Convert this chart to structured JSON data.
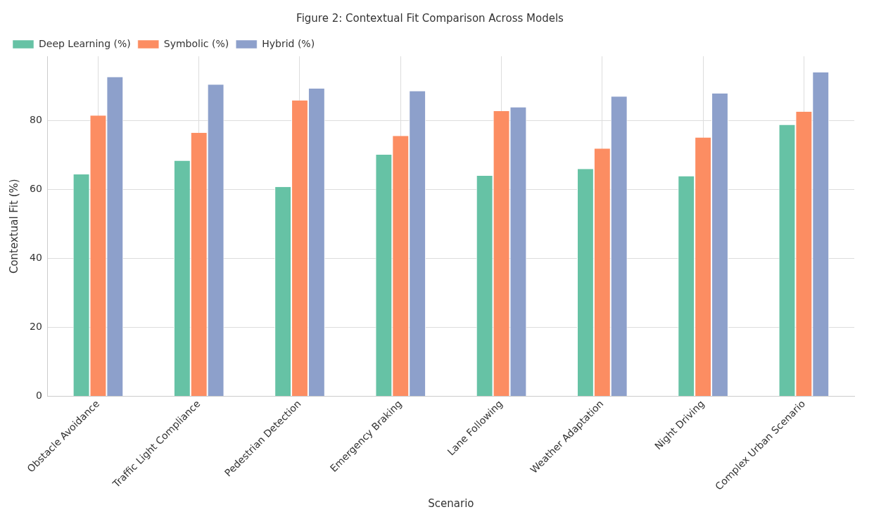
{
  "chart_data": {
    "type": "bar",
    "title": "Figure 2: Contextual Fit Comparison Across Models",
    "xlabel": "Scenario",
    "ylabel": "Contextual Fit (%)",
    "categories": [
      "Obstacle Avoidance",
      "Traffic Light Compliance",
      "Pedestrian Detection",
      "Emergency Braking",
      "Lane Following",
      "Weather Adaptation",
      "Night Driving",
      "Complex Urban Scenario"
    ],
    "series": [
      {
        "name": "Deep Learning (%)",
        "color": "#66c2a5",
        "values": [
          64.4,
          68.4,
          60.8,
          70.1,
          64.0,
          66.0,
          63.9,
          78.8
        ]
      },
      {
        "name": "Symbolic (%)",
        "color": "#fc8d62",
        "values": [
          81.5,
          76.5,
          85.9,
          75.6,
          82.8,
          71.9,
          75.1,
          82.6
        ]
      },
      {
        "name": "Hybrid (%)",
        "color": "#8da0cb",
        "values": [
          92.7,
          90.5,
          89.3,
          88.6,
          83.9,
          87.0,
          87.9,
          94.0
        ]
      }
    ],
    "ylim": [
      0,
      98.7
    ],
    "yticks": [
      0,
      20,
      40,
      60,
      80
    ],
    "grid": true,
    "legend": "top left"
  }
}
